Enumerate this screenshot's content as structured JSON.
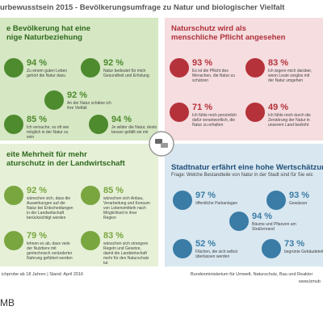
{
  "header": {
    "title": "urbewusstsein 2015 - Bevölkerungsumfrage zu Natur und biologischer Vielfalt"
  },
  "quadrants": [
    {
      "heading": [
        "e Bevölkerung hat eine",
        "nige Naturbeziehung"
      ],
      "items": [
        {
          "percent": "94 %",
          "text": "Zu einem guten Leben gehört die Natur dazu"
        },
        {
          "percent": "92 %",
          "text": "Natur bedeutet für mich Gesundheit und Erholung"
        },
        {
          "percent": "92 %",
          "text": "An der Natur schätze ich ihre Vielfalt"
        },
        {
          "percent": "85 %",
          "text": "Ich versuche, so oft wie möglich in der Natur zu sein"
        },
        {
          "percent": "94 %",
          "text": "Je wilder die Natur, desto besser gefällt sie mir"
        }
      ]
    },
    {
      "heading": [
        "Naturschutz wird als",
        "menschliche Pflicht angesehen"
      ],
      "items": [
        {
          "percent": "93 %",
          "text": "Es ist die Pflicht des Menschen, die Natur zu schützen"
        },
        {
          "percent": "83 %",
          "text": "Ich ärgere mich darüber, wenn Leute sorglos mit der Natur umgehen"
        },
        {
          "percent": "71 %",
          "text": "Ich fühle mich persönlich dafür verantwortlich, die Natur zu erhalten"
        },
        {
          "percent": "49 %",
          "text": "Ich fühle mich durch die Zerstörung der Natur in unserem Land bedroht"
        }
      ]
    },
    {
      "heading": [
        "eite Mehrheit für mehr",
        "aturschutz in der Landwirtschaft"
      ],
      "items": [
        {
          "percent": "92 %",
          "text": "wünschen sich, dass die Auswirkungen auf die Natur bei Entscheidungen in der Landwirtschaft berücksichtigt werden"
        },
        {
          "percent": "85 %",
          "text": "wünschen sich Anbau, Verarbeitung und Konsum von Lebensmitteln nach Möglichkeit in ihrer Region"
        },
        {
          "percent": "79 %",
          "text": "lehnen es ab, dass viele der Nutztiere mit gentechnisch veränderter Nahrung gefüttert werden"
        },
        {
          "percent": "83 %",
          "text": "wünschen sich strengere Regeln und Gesetze, damit die Landwirtschaft mehr für den Naturschutz tut"
        }
      ]
    },
    {
      "heading": [
        "Stadtnatur erfährt eine hohe Wertschätzun"
      ],
      "question": "Frage: Welche Bestandteile von Natur in der Stadt sind für Sie wic",
      "items": [
        {
          "percent": "97 %",
          "text": "öffentliche Parkanlagen"
        },
        {
          "percent": "93 %",
          "text": "Gewässer"
        },
        {
          "percent": "94 %",
          "text": "Bäume und Pflanzen am Straßenrand"
        },
        {
          "percent": "52 %",
          "text": "Flächen, die sich selbst überlassen werden"
        },
        {
          "percent": "73 %",
          "text": "begrünte Gebäudeteile"
        }
      ]
    }
  ],
  "footer": {
    "left": "ichprobe ab 18 Jahren | Stand: April 2016",
    "right": "Bundesministerium für Umwelt, Naturschutz, Bau und Reaktor",
    "url": "www.bmub",
    "logo": "MB"
  }
}
